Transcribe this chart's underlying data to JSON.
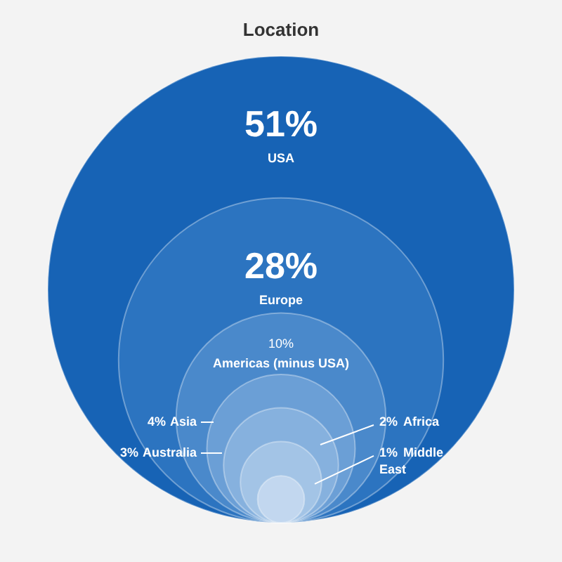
{
  "chart_data": {
    "type": "other",
    "title": "Location",
    "categories": [
      "USA",
      "Europe",
      "Americas (minus USA)",
      "Asia",
      "Australia",
      "Africa",
      "Middle East"
    ],
    "values": [
      51,
      28,
      10,
      4,
      3,
      2,
      1
    ],
    "value_labels": [
      "51%",
      "28%",
      "10%",
      "4%",
      "3%",
      "2%",
      "1%"
    ],
    "colors": [
      "#1763b5",
      "#2c74c0",
      "#4a89cb",
      "#6b9fd6",
      "#86b1de",
      "#a3c4e6",
      "#c2d7ef"
    ]
  }
}
